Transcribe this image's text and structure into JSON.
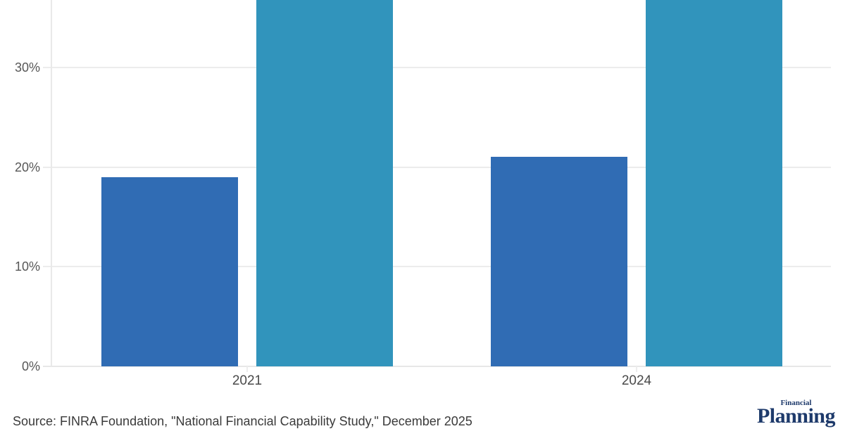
{
  "chart_data": {
    "type": "bar",
    "title": "",
    "categories": [
      "2021",
      "2024"
    ],
    "series": [
      {
        "name": "series-1-dark-blue",
        "color": "#306cb4",
        "values": [
          19,
          21
        ],
        "clipped_at_top": [
          false,
          false
        ]
      },
      {
        "name": "series-2-teal",
        "color": "#3194bc",
        "values": [
          37,
          37
        ],
        "clipped_at_top": [
          true,
          true
        ]
      }
    ],
    "y_axis": {
      "tick_labels": [
        "0%",
        "10%",
        "20%",
        "30%"
      ],
      "tick_values": [
        0,
        10,
        20,
        30
      ],
      "unit": "%"
    },
    "x_axis": {
      "tick_labels": [
        "2021",
        "2024"
      ]
    },
    "grid": true,
    "legend": "",
    "notes": "Teal bars extend past the top edge of the visible image (values at least ~37%); no chart title or legend is visible in the crop."
  },
  "footer": {
    "source": "Source: FINRA Foundation, \"National Financial Capability Study,\" December 2025",
    "logo": {
      "line1": "Financial",
      "line2": "Planning",
      "color": "#1e3a6b"
    }
  },
  "colors": {
    "grid": "#ececec",
    "baseline": "#e7e7e7",
    "axis_line": "#e9e9e9",
    "tick": "#ededed",
    "y_label": "#575757",
    "x_label": "#4a4a4a",
    "source_text": "#3a3a3a"
  }
}
